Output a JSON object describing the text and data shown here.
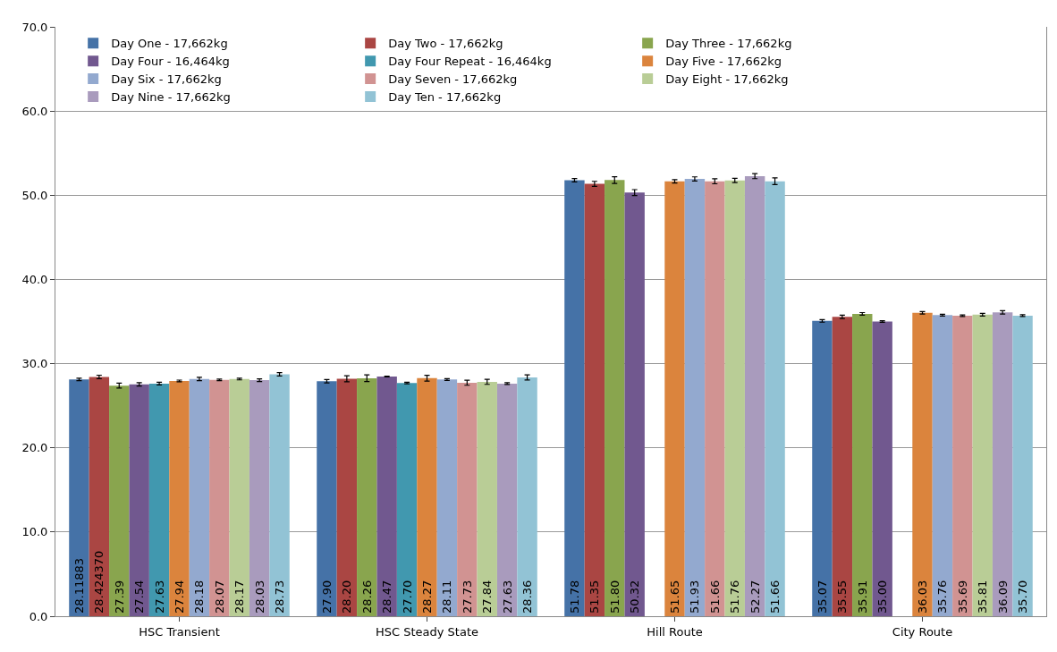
{
  "chart_data": {
    "type": "bar",
    "categories": [
      "HSC Transient",
      "HSC Steady State",
      "Hill Route",
      "City Route"
    ],
    "series": [
      {
        "name": "Day One - 17,662kg",
        "color": "#4572a7",
        "values": [
          28.11883,
          27.9,
          51.78,
          35.07
        ],
        "value_labels": [
          "28.11883",
          "27.90",
          "51.78",
          "35.07"
        ],
        "errors": [
          0.15,
          0.2,
          0.2,
          0.15
        ]
      },
      {
        "name": "Day Two - 17,662kg",
        "color": "#aa4643",
        "values": [
          28.42437,
          28.2,
          51.35,
          35.55
        ],
        "value_labels": [
          "28.424370",
          "28.20",
          "51.35",
          "35.55"
        ],
        "errors": [
          0.2,
          0.35,
          0.3,
          0.2
        ]
      },
      {
        "name": "Day Three - 17,662kg",
        "color": "#89a54e",
        "values": [
          27.39,
          28.26,
          51.8,
          35.91
        ],
        "value_labels": [
          "27.39",
          "28.26",
          "51.80",
          "35.91"
        ],
        "errors": [
          0.3,
          0.4,
          0.4,
          0.15
        ]
      },
      {
        "name": "Day Four - 16,464kg",
        "color": "#71588f",
        "values": [
          27.54,
          28.47,
          50.32,
          35.0
        ],
        "value_labels": [
          "27.54",
          "28.47",
          "50.32",
          "35.00"
        ],
        "errors": [
          0.2,
          0.05,
          0.35,
          0.1
        ]
      },
      {
        "name": "Day Four Repeat - 16,464kg",
        "color": "#4198af",
        "values": [
          27.63,
          27.7,
          null,
          null
        ],
        "value_labels": [
          "27.63",
          "27.70",
          null,
          null
        ],
        "errors": [
          0.15,
          0.1,
          null,
          null
        ]
      },
      {
        "name": "Day Five - 17,662kg",
        "color": "#db843d",
        "values": [
          27.94,
          28.27,
          51.65,
          36.03
        ],
        "value_labels": [
          "27.94",
          "28.27",
          "51.65",
          "36.03"
        ],
        "errors": [
          0.1,
          0.35,
          0.2,
          0.15
        ]
      },
      {
        "name": "Day Six - 17,662kg",
        "color": "#93a9cf",
        "values": [
          28.18,
          28.11,
          51.93,
          35.76
        ],
        "value_labels": [
          "28.18",
          "28.11",
          "51.93",
          "35.76"
        ],
        "errors": [
          0.2,
          0.1,
          0.25,
          0.1
        ]
      },
      {
        "name": "Day Seven - 17,662kg",
        "color": "#d19392",
        "values": [
          28.07,
          27.73,
          51.66,
          35.69
        ],
        "value_labels": [
          "28.07",
          "27.73",
          "51.66",
          "35.69"
        ],
        "errors": [
          0.1,
          0.3,
          0.3,
          0.1
        ]
      },
      {
        "name": "Day Eight - 17,662kg",
        "color": "#b9cd96",
        "values": [
          28.17,
          27.84,
          51.76,
          35.81
        ],
        "value_labels": [
          "28.17",
          "27.84",
          "51.76",
          "35.81"
        ],
        "errors": [
          0.1,
          0.3,
          0.25,
          0.15
        ]
      },
      {
        "name": "Day Nine - 17,662kg",
        "color": "#a99bbd",
        "values": [
          28.03,
          27.63,
          52.27,
          36.09
        ],
        "value_labels": [
          "28.03",
          "27.63",
          "52.27",
          "36.09"
        ],
        "errors": [
          0.15,
          0.1,
          0.3,
          0.2
        ]
      },
      {
        "name": "Day Ten - 17,662kg",
        "color": "#92c3d5",
        "values": [
          28.73,
          28.36,
          51.66,
          35.7
        ],
        "value_labels": [
          "28.73",
          "28.36",
          "51.66",
          "35.70"
        ],
        "errors": [
          0.2,
          0.3,
          0.4,
          0.1
        ]
      }
    ],
    "ylim": [
      0,
      70
    ],
    "yticks": [
      {
        "value": 0,
        "label": "0.0"
      },
      {
        "value": 10,
        "label": "10.0"
      },
      {
        "value": 20,
        "label": "20.0"
      },
      {
        "value": 30,
        "label": "30.0"
      },
      {
        "value": 40,
        "label": "40.0"
      },
      {
        "value": 50,
        "label": "50.0"
      },
      {
        "value": 60,
        "label": "60.0"
      },
      {
        "value": 70,
        "label": "70.0"
      }
    ],
    "grid": "y",
    "legend": "top"
  }
}
